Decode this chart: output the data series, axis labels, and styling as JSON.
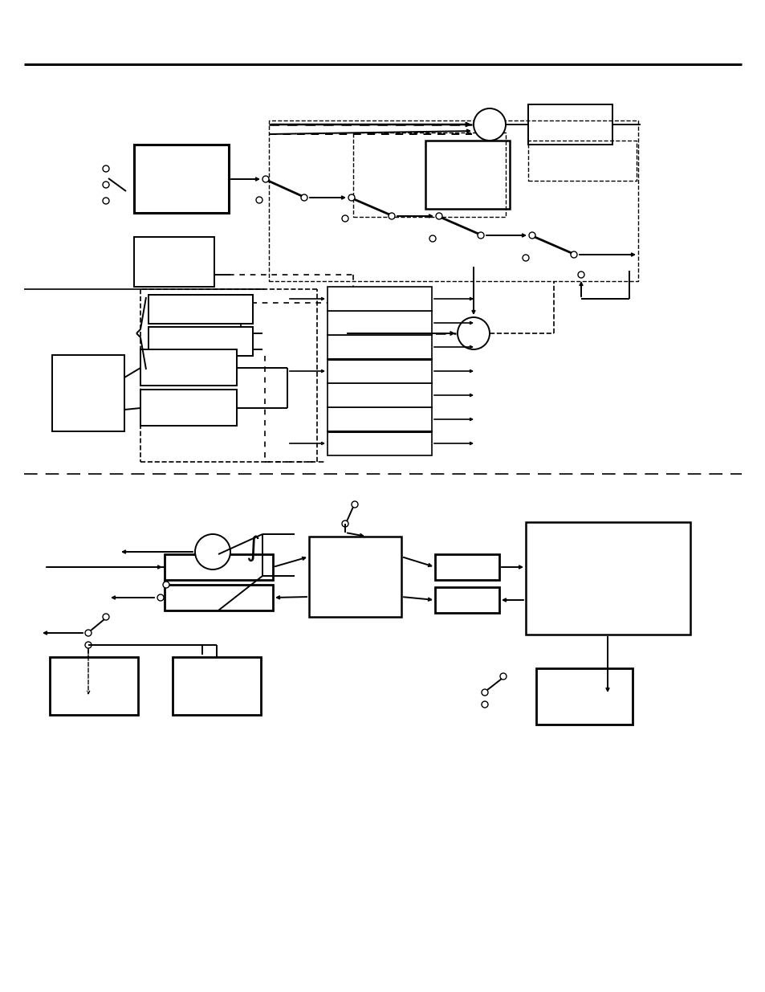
{
  "bg_color": "#ffffff",
  "fig_width": 9.54,
  "fig_height": 12.35,
  "dpi": 100
}
